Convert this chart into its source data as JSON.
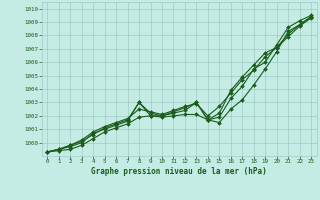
{
  "x": [
    0,
    1,
    2,
    3,
    4,
    5,
    6,
    7,
    8,
    9,
    10,
    11,
    12,
    13,
    14,
    15,
    16,
    17,
    18,
    19,
    20,
    21,
    22,
    23
  ],
  "series1": [
    999.3,
    999.5,
    999.7,
    1000.0,
    1000.7,
    1001.0,
    1001.3,
    1001.6,
    1003.0,
    1002.0,
    1002.0,
    1002.2,
    1002.4,
    1003.0,
    1001.7,
    1001.5,
    1002.5,
    1003.2,
    1004.3,
    1005.5,
    1006.8,
    1008.3,
    1008.8,
    1009.4
  ],
  "series2": [
    999.3,
    999.4,
    999.5,
    999.8,
    1000.3,
    1000.8,
    1001.1,
    1001.4,
    1001.9,
    1002.0,
    1001.9,
    1002.0,
    1002.1,
    1002.1,
    1001.7,
    1001.9,
    1003.3,
    1004.2,
    1005.5,
    1006.0,
    1007.3,
    1008.6,
    1009.1,
    1009.5
  ],
  "series3": [
    999.3,
    999.5,
    999.8,
    1000.2,
    1000.8,
    1001.2,
    1001.5,
    1001.8,
    1002.5,
    1002.3,
    1002.1,
    1002.4,
    1002.7,
    1002.9,
    1002.0,
    1002.7,
    1003.7,
    1004.7,
    1005.4,
    1006.4,
    1007.1,
    1008.1,
    1008.8,
    1009.4
  ],
  "series4": [
    999.3,
    999.5,
    999.8,
    1000.1,
    1000.6,
    1001.1,
    1001.4,
    1001.7,
    1003.0,
    1002.2,
    1002.0,
    1002.3,
    1002.6,
    1003.0,
    1001.7,
    1002.2,
    1003.9,
    1004.9,
    1005.8,
    1006.7,
    1007.1,
    1007.9,
    1008.7,
    1009.3
  ],
  "ylim": [
    999.0,
    1010.5
  ],
  "yticks": [
    1000,
    1001,
    1002,
    1003,
    1004,
    1005,
    1006,
    1007,
    1008,
    1009,
    1010
  ],
  "xlim": [
    -0.5,
    23.5
  ],
  "xticks": [
    0,
    1,
    2,
    3,
    4,
    5,
    6,
    7,
    8,
    9,
    10,
    11,
    12,
    13,
    14,
    15,
    16,
    17,
    18,
    19,
    20,
    21,
    22,
    23
  ],
  "xlabel": "Graphe pression niveau de la mer (hPa)",
  "line_color": "#1a5c1a",
  "bg_plot": "#c5ebe5",
  "bg_fig": "#c5ebe5",
  "grid_color": "#9eccc5",
  "tick_color": "#1a5c1a",
  "label_color": "#1a5c1a",
  "marker": "D",
  "markersize": 2.0,
  "linewidth": 0.8,
  "xlabel_fontsize": 5.5,
  "tick_fontsize": 4.2
}
